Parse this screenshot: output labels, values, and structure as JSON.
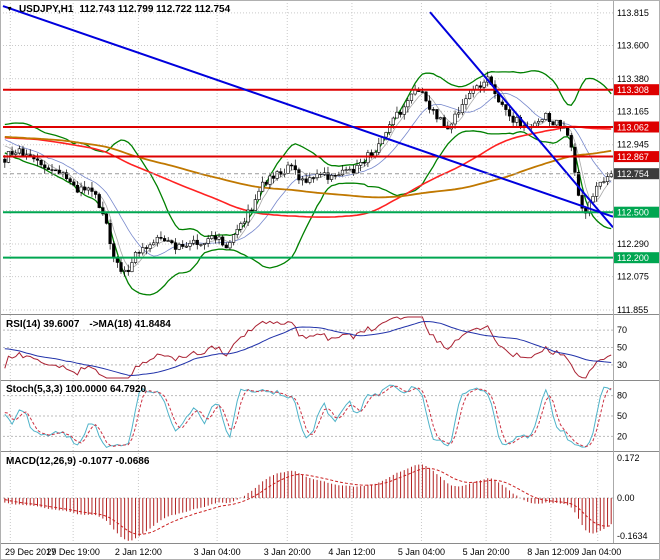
{
  "window": {
    "symbol_title": "USDJPY,H1",
    "ohlc_text": "112.743 112.799 112.722 112.754"
  },
  "colors": {
    "bull": "#ffffff",
    "bear": "#000000",
    "wick": "#000000",
    "bollinger": "#008000",
    "ma_red": "#ff2222",
    "ma_orange": "#c07800",
    "ribbon1": "#a8a8a8",
    "ribbon2": "#7788cc",
    "trend": "#0000dd",
    "grid": "#c9c9c9",
    "axis_text": "#000000",
    "badge_text": "#ffffff",
    "badge_red": "#dd0000",
    "badge_green": "#00a651",
    "badge_current": "#3c3c3c",
    "current_line": "#999999",
    "separator": "#8a8a8a",
    "rsi_main": "#aa2233",
    "rsi_ma": "#2233aa",
    "stoch_k": "#4fb3c9",
    "stoch_d": "#cc3344",
    "macd_hist": "#b22222",
    "macd_signal": "#cc2222"
  },
  "chart_data": {
    "type": "candlestick",
    "symbol": "USDJPY",
    "timeframe": "H1",
    "open": 112.743,
    "high": 112.799,
    "low": 112.722,
    "close": 112.754,
    "num_candles": 168,
    "y_axis_range": [
      111.835,
      113.88
    ],
    "y_grid": [
      113.815,
      113.6,
      113.38,
      113.165,
      112.945,
      112.73,
      112.51,
      112.29,
      112.075,
      111.855
    ],
    "y_tick_labels": [
      {
        "v": 113.815,
        "label": "113.815"
      },
      {
        "v": 113.6,
        "label": "113.600"
      },
      {
        "v": 113.38,
        "label": "113.380"
      },
      {
        "v": 113.165,
        "label": "113.165"
      },
      {
        "v": 112.945,
        "label": "112.945"
      },
      {
        "v": 112.29,
        "label": "112.290"
      },
      {
        "v": 112.075,
        "label": "112.075"
      },
      {
        "v": 111.855,
        "label": "111.855"
      }
    ],
    "x_labels": [
      {
        "f": 0.012,
        "label": "29 Dec 2017",
        "align": "start"
      },
      {
        "f": 0.115,
        "label": "29 Dec 19:00"
      },
      {
        "f": 0.222,
        "label": "2 Jan 12:00"
      },
      {
        "f": 0.351,
        "label": "3 Jan 04:00"
      },
      {
        "f": 0.466,
        "label": "3 Jan 20:00"
      },
      {
        "f": 0.572,
        "label": "4 Jan 12:00"
      },
      {
        "f": 0.686,
        "label": "5 Jan 04:00"
      },
      {
        "f": 0.792,
        "label": "5 Jan 20:00"
      },
      {
        "f": 0.898,
        "label": "8 Jan 12:00"
      },
      {
        "f": 0.975,
        "label": "9 Jan 04:00"
      }
    ],
    "price_anchors": [
      [
        0.0,
        112.85
      ],
      [
        0.02,
        112.91
      ],
      [
        0.045,
        112.84
      ],
      [
        0.07,
        112.8
      ],
      [
        0.095,
        112.74
      ],
      [
        0.12,
        112.65
      ],
      [
        0.15,
        112.62
      ],
      [
        0.165,
        112.45
      ],
      [
        0.18,
        112.18
      ],
      [
        0.195,
        112.1
      ],
      [
        0.21,
        112.17
      ],
      [
        0.228,
        112.28
      ],
      [
        0.255,
        112.32
      ],
      [
        0.285,
        112.27
      ],
      [
        0.315,
        112.31
      ],
      [
        0.345,
        112.33
      ],
      [
        0.37,
        112.28
      ],
      [
        0.395,
        112.45
      ],
      [
        0.42,
        112.65
      ],
      [
        0.445,
        112.75
      ],
      [
        0.47,
        112.78
      ],
      [
        0.495,
        112.71
      ],
      [
        0.52,
        112.76
      ],
      [
        0.545,
        112.73
      ],
      [
        0.57,
        112.78
      ],
      [
        0.595,
        112.84
      ],
      [
        0.62,
        112.97
      ],
      [
        0.645,
        113.13
      ],
      [
        0.668,
        113.25
      ],
      [
        0.688,
        113.31
      ],
      [
        0.708,
        113.15
      ],
      [
        0.728,
        113.04
      ],
      [
        0.752,
        113.2
      ],
      [
        0.775,
        113.33
      ],
      [
        0.795,
        113.38
      ],
      [
        0.815,
        113.22
      ],
      [
        0.84,
        113.1
      ],
      [
        0.865,
        113.06
      ],
      [
        0.89,
        113.12
      ],
      [
        0.915,
        113.09
      ],
      [
        0.932,
        112.96
      ],
      [
        0.947,
        112.58
      ],
      [
        0.958,
        112.5
      ],
      [
        0.972,
        112.63
      ],
      [
        0.986,
        112.71
      ],
      [
        1.0,
        112.754
      ]
    ],
    "hlines": [
      {
        "price": 113.308,
        "color": "#dd0000",
        "width": 2
      },
      {
        "price": 113.062,
        "color": "#dd0000",
        "width": 2
      },
      {
        "price": 112.867,
        "color": "#dd0000",
        "width": 2
      },
      {
        "price": 112.5,
        "color": "#00a651",
        "width": 2
      },
      {
        "price": 112.2,
        "color": "#00a651",
        "width": 2
      }
    ],
    "price_badges": [
      {
        "price": 113.308,
        "label": "113.308",
        "bg": "#dd0000"
      },
      {
        "price": 113.062,
        "label": "113.062",
        "bg": "#dd0000"
      },
      {
        "price": 112.867,
        "label": "112.867",
        "bg": "#dd0000"
      },
      {
        "price": 112.754,
        "label": "112.754",
        "bg": "#3c3c3c"
      },
      {
        "price": 112.5,
        "label": "112.500",
        "bg": "#00a651"
      },
      {
        "price": 112.2,
        "label": "112.200",
        "bg": "#00a651"
      }
    ],
    "trendlines": [
      {
        "f1": 0.0,
        "p1": 113.86,
        "f2": 1.0,
        "p2": 112.47
      },
      {
        "f1": 0.7,
        "p1": 113.82,
        "f2": 1.0,
        "p2": 112.4
      }
    ],
    "panels": {
      "rsi": {
        "label": "RSI(14) 39.6007",
        "label2": "->MA(18) 41.8484",
        "levels": [
          {
            "v": 70,
            "label": "70"
          },
          {
            "v": 50,
            "label": "50"
          },
          {
            "v": 30,
            "label": "30"
          }
        ]
      },
      "stoch": {
        "label": "Stoch(5,3,3) 100.0000 64.7920",
        "levels": [
          {
            "v": 80,
            "label": "80"
          },
          {
            "v": 50,
            "label": "50"
          },
          {
            "v": 20,
            "label": "20"
          }
        ]
      },
      "macd": {
        "label": "MACD(12,26,9) -0.1077 -0.0686",
        "levels": [
          {
            "v": 0.172,
            "label": "0.172"
          },
          {
            "v": 0,
            "label": "0.00"
          },
          {
            "v": -0.1634,
            "label": "-0.1634"
          }
        ]
      }
    }
  }
}
